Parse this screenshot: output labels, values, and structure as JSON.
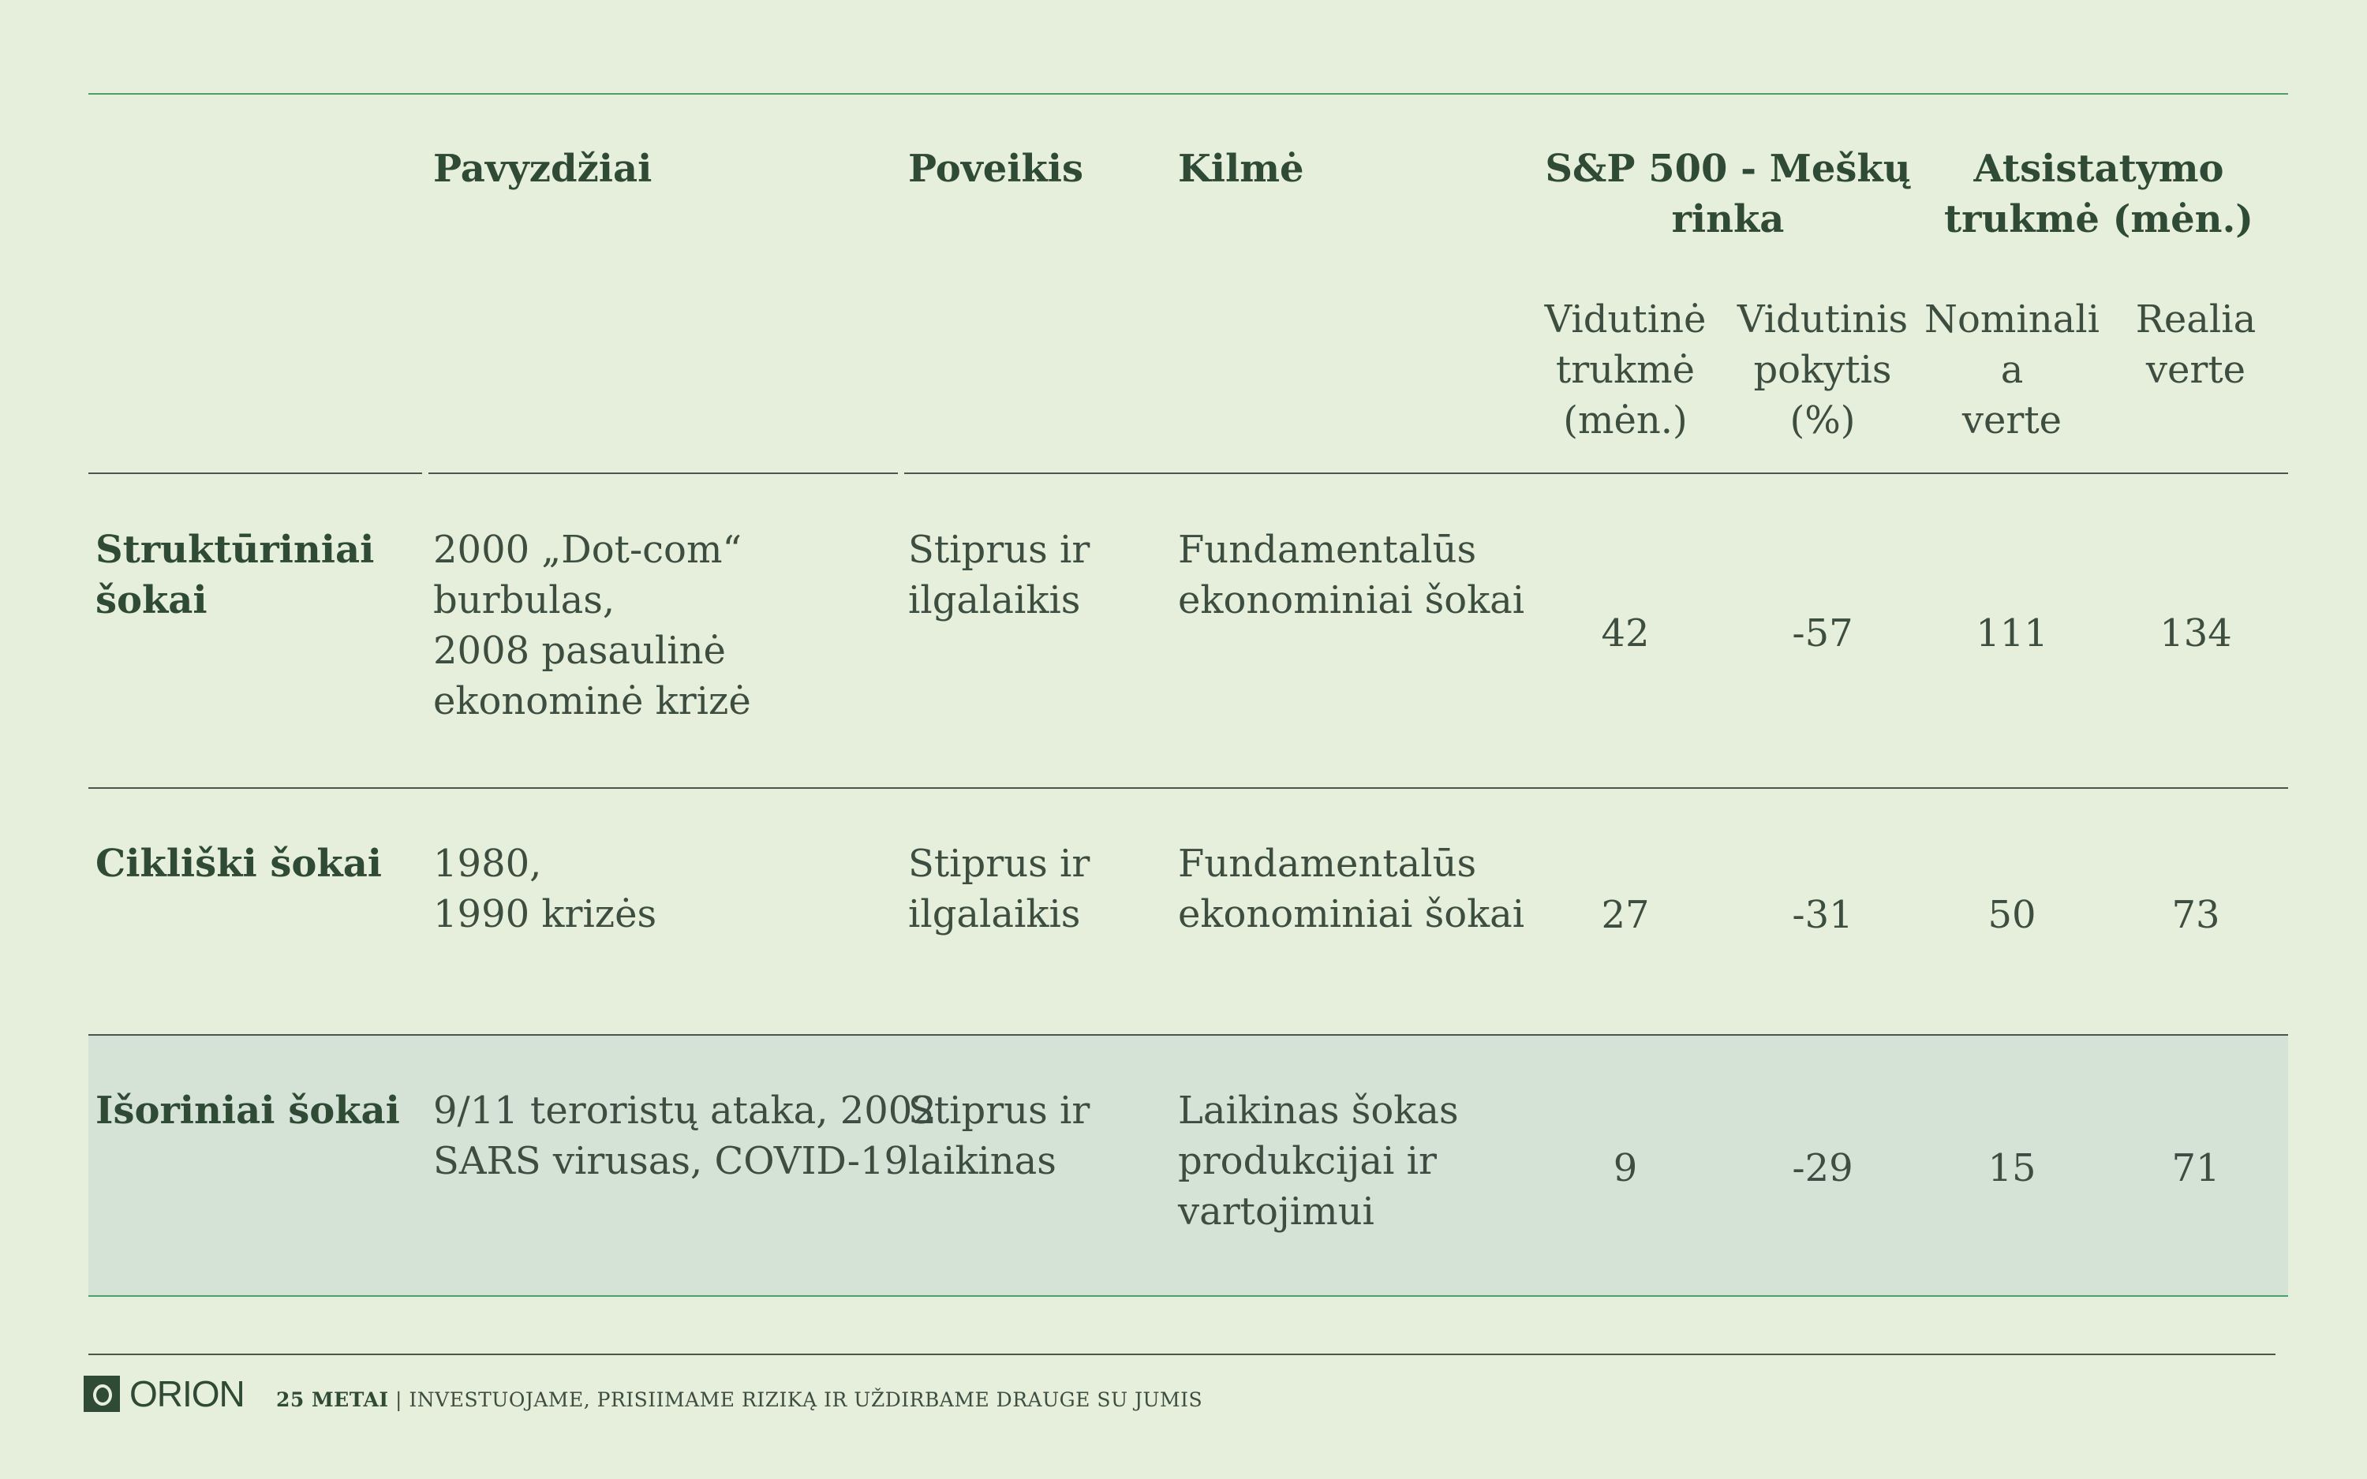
{
  "header": {
    "col_examples": "Pavyzdžiai",
    "col_impact": "Poveikis",
    "col_origin": "Kilmė",
    "col_sp500": "S&P 500 - Meškų\nrinka",
    "col_recovery": "Atsistatymo\ntrukmė (mėn.)",
    "sub_avg_duration": "Vidutinė\ntrukmė\n(mėn.)",
    "sub_avg_change": "Vidutinis\npokytis\n(%)",
    "sub_nominal": "Nominali\na\nverte",
    "sub_real": "Realia\nverte"
  },
  "rows": [
    {
      "type": "Struktūriniai\nšokai",
      "examples": "2000 „Dot-com“\nburbulas,\n2008 pasaulinė\nekonominė krizė",
      "impact": "Stiprus ir\nilgalaikis",
      "origin": "Fundamentalūs\nekonominiai šokai",
      "avg_duration": "42",
      "avg_change": "-57",
      "nominal": "111",
      "real": "134"
    },
    {
      "type": "Cikliški šokai",
      "examples": "1980,\n1990 krizės",
      "impact": "Stiprus ir\nilgalaikis",
      "origin": "Fundamentalūs\nekonominiai šokai",
      "avg_duration": "27",
      "avg_change": "-31",
      "nominal": "50",
      "real": "73"
    },
    {
      "type": "Išoriniai šokai",
      "examples": "9/11 teroristų ataka, 2002\nSARS virusas, COVID-19",
      "impact": "Stiprus ir\nlaikinas",
      "origin": "Laikinas šokas\nprodukcijai ir\nvartojimui",
      "avg_duration": "9",
      "avg_change": "-29",
      "nominal": "15",
      "real": "71"
    }
  ],
  "footer": {
    "logo_text": "ORION",
    "years": "25 METAI",
    "separator": "|",
    "tagline": "INVESTUOJAME, PRISIIMAME RIZIKĄ IR UŽDIRBAME DRAUGE SU JUMIS"
  },
  "colors": {
    "background": "#e5efdc",
    "accent_green": "#4ca06a",
    "heading": "#2f4a35",
    "highlight_row": "#d4e3d5"
  }
}
